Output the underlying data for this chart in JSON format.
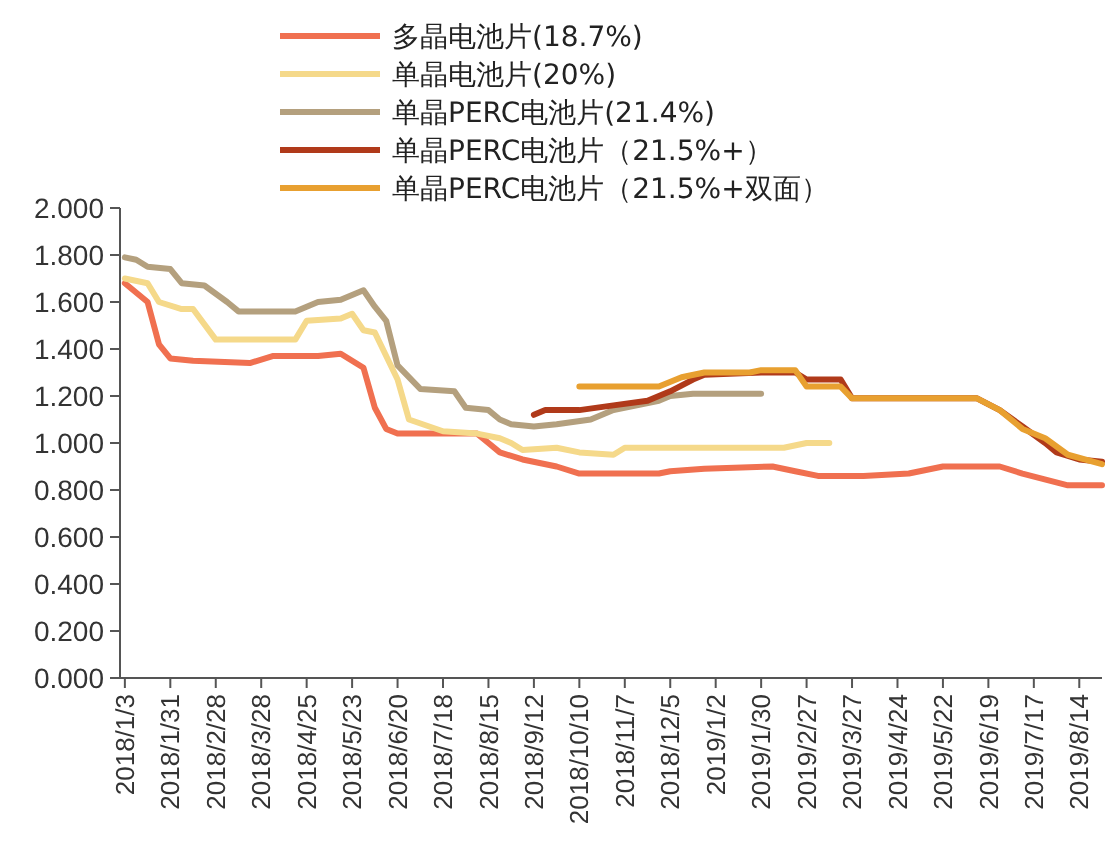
{
  "chart_data": {
    "type": "line",
    "legend": "top",
    "grid": false,
    "line_style": "solid",
    "xlim": [
      "2017-12-31",
      "2019-08-28"
    ],
    "ylim": [
      0,
      2
    ],
    "yticks": [
      {
        "value": 0,
        "label": "0.000"
      },
      {
        "value": 0.2,
        "label": "0.200"
      },
      {
        "value": 0.4,
        "label": "0.400"
      },
      {
        "value": 0.6,
        "label": "0.600"
      },
      {
        "value": 0.8,
        "label": "0.800"
      },
      {
        "value": 1,
        "label": "1.000"
      },
      {
        "value": 1.2,
        "label": "1.200"
      },
      {
        "value": 1.4,
        "label": "1.400"
      },
      {
        "value": 1.6,
        "label": "1.600"
      },
      {
        "value": 1.8,
        "label": "1.800"
      },
      {
        "value": 2,
        "label": "2.000"
      }
    ],
    "xticks": [
      {
        "value": "2018-01-03",
        "label": "2018/1/3"
      },
      {
        "value": "2018-01-31",
        "label": "2018/1/31"
      },
      {
        "value": "2018-02-28",
        "label": "2018/2/28"
      },
      {
        "value": "2018-03-28",
        "label": "2018/3/28"
      },
      {
        "value": "2018-04-25",
        "label": "2018/4/25"
      },
      {
        "value": "2018-05-23",
        "label": "2018/5/23"
      },
      {
        "value": "2018-06-20",
        "label": "2018/6/20"
      },
      {
        "value": "2018-07-18",
        "label": "2018/7/18"
      },
      {
        "value": "2018-08-15",
        "label": "2018/8/15"
      },
      {
        "value": "2018-09-12",
        "label": "2018/9/12"
      },
      {
        "value": "2018-10-10",
        "label": "2018/10/10"
      },
      {
        "value": "2018-11-07",
        "label": "2018/11/7"
      },
      {
        "value": "2018-12-05",
        "label": "2018/12/5"
      },
      {
        "value": "2019-01-02",
        "label": "2019/1/2"
      },
      {
        "value": "2019-01-30",
        "label": "2019/1/30"
      },
      {
        "value": "2019-02-27",
        "label": "2019/2/27"
      },
      {
        "value": "2019-03-27",
        "label": "2019/3/27"
      },
      {
        "value": "2019-04-24",
        "label": "2019/4/24"
      },
      {
        "value": "2019-05-22",
        "label": "2019/5/22"
      },
      {
        "value": "2019-06-19",
        "label": "2019/6/19"
      },
      {
        "value": "2019-07-17",
        "label": "2019/7/17"
      },
      {
        "value": "2019-08-14",
        "label": "2019/8/14"
      }
    ],
    "series": [
      {
        "name": "多晶电池片(18.7%)",
        "color": "#f07050",
        "x": [
          "2018-01-03",
          "2018-01-17",
          "2018-01-24",
          "2018-01-31",
          "2018-02-14",
          "2018-03-21",
          "2018-04-04",
          "2018-05-02",
          "2018-05-16",
          "2018-05-30",
          "2018-06-06",
          "2018-06-13",
          "2018-06-20",
          "2018-08-08",
          "2018-08-15",
          "2018-08-22",
          "2018-09-05",
          "2018-09-26",
          "2018-10-10",
          "2018-11-28",
          "2018-12-05",
          "2018-12-26",
          "2019-02-06",
          "2019-02-20",
          "2019-03-06",
          "2019-04-03",
          "2019-05-01",
          "2019-05-22",
          "2019-06-26",
          "2019-07-10",
          "2019-08-07",
          "2019-08-28"
        ],
        "values": [
          1.68,
          1.6,
          1.42,
          1.36,
          1.35,
          1.34,
          1.37,
          1.37,
          1.38,
          1.32,
          1.15,
          1.06,
          1.04,
          1.04,
          1.0,
          0.96,
          0.93,
          0.9,
          0.87,
          0.87,
          0.88,
          0.89,
          0.9,
          0.88,
          0.86,
          0.86,
          0.87,
          0.9,
          0.9,
          0.87,
          0.82,
          0.82
        ]
      },
      {
        "name": "单晶电池片(20%)",
        "color": "#f5d98a",
        "x": [
          "2018-01-03",
          "2018-01-17",
          "2018-01-24",
          "2018-02-07",
          "2018-02-14",
          "2018-02-28",
          "2018-04-18",
          "2018-04-25",
          "2018-05-16",
          "2018-05-23",
          "2018-05-30",
          "2018-06-06",
          "2018-06-20",
          "2018-06-27",
          "2018-07-18",
          "2018-08-08",
          "2018-08-22",
          "2018-08-29",
          "2018-09-05",
          "2018-09-26",
          "2018-10-10",
          "2018-10-31",
          "2018-11-07",
          "2019-02-13",
          "2019-02-27",
          "2019-03-13"
        ],
        "values": [
          1.7,
          1.68,
          1.6,
          1.57,
          1.57,
          1.44,
          1.44,
          1.52,
          1.53,
          1.55,
          1.48,
          1.47,
          1.27,
          1.1,
          1.05,
          1.04,
          1.02,
          1.0,
          0.97,
          0.98,
          0.96,
          0.95,
          0.98,
          0.98,
          1.0,
          1.0
        ]
      },
      {
        "name": "单晶PERC电池片(21.4%)",
        "color": "#b4a07e",
        "x": [
          "2018-01-03",
          "2018-01-10",
          "2018-01-17",
          "2018-01-31",
          "2018-02-07",
          "2018-02-21",
          "2018-03-07",
          "2018-03-14",
          "2018-04-18",
          "2018-04-25",
          "2018-05-02",
          "2018-05-16",
          "2018-05-30",
          "2018-06-06",
          "2018-06-13",
          "2018-06-20",
          "2018-07-04",
          "2018-07-25",
          "2018-08-01",
          "2018-08-15",
          "2018-08-22",
          "2018-08-29",
          "2018-09-12",
          "2018-09-26",
          "2018-10-17",
          "2018-10-31",
          "2018-11-28",
          "2018-12-05",
          "2018-12-19",
          "2019-01-30"
        ],
        "values": [
          1.79,
          1.78,
          1.75,
          1.74,
          1.68,
          1.67,
          1.6,
          1.56,
          1.56,
          1.58,
          1.6,
          1.61,
          1.65,
          1.58,
          1.52,
          1.33,
          1.23,
          1.22,
          1.15,
          1.14,
          1.1,
          1.08,
          1.07,
          1.08,
          1.1,
          1.14,
          1.18,
          1.2,
          1.21,
          1.21
        ]
      },
      {
        "name": "单晶PERC电池片（21.5%+）",
        "color": "#b03a1a",
        "x": [
          "2018-09-12",
          "2018-09-19",
          "2018-10-10",
          "2018-10-31",
          "2018-11-21",
          "2018-12-05",
          "2018-12-19",
          "2018-12-26",
          "2019-01-30",
          "2019-02-20",
          "2019-02-27",
          "2019-03-20",
          "2019-03-27",
          "2019-06-12",
          "2019-06-26",
          "2019-07-10",
          "2019-07-24",
          "2019-07-31",
          "2019-08-14",
          "2019-08-28"
        ],
        "values": [
          1.12,
          1.14,
          1.14,
          1.16,
          1.18,
          1.22,
          1.27,
          1.29,
          1.3,
          1.3,
          1.27,
          1.27,
          1.19,
          1.19,
          1.14,
          1.07,
          1.0,
          0.96,
          0.93,
          0.92
        ]
      },
      {
        "name": "单晶PERC电池片（21.5%+双面）",
        "color": "#e8a030",
        "x": [
          "2018-10-10",
          "2018-11-28",
          "2018-12-12",
          "2018-12-26",
          "2019-01-23",
          "2019-01-30",
          "2019-02-20",
          "2019-02-27",
          "2019-03-20",
          "2019-03-27",
          "2019-06-12",
          "2019-06-26",
          "2019-07-10",
          "2019-07-24",
          "2019-08-07",
          "2019-08-28"
        ],
        "values": [
          1.24,
          1.24,
          1.28,
          1.3,
          1.3,
          1.31,
          1.31,
          1.24,
          1.24,
          1.19,
          1.19,
          1.14,
          1.06,
          1.02,
          0.95,
          0.91
        ]
      }
    ]
  }
}
